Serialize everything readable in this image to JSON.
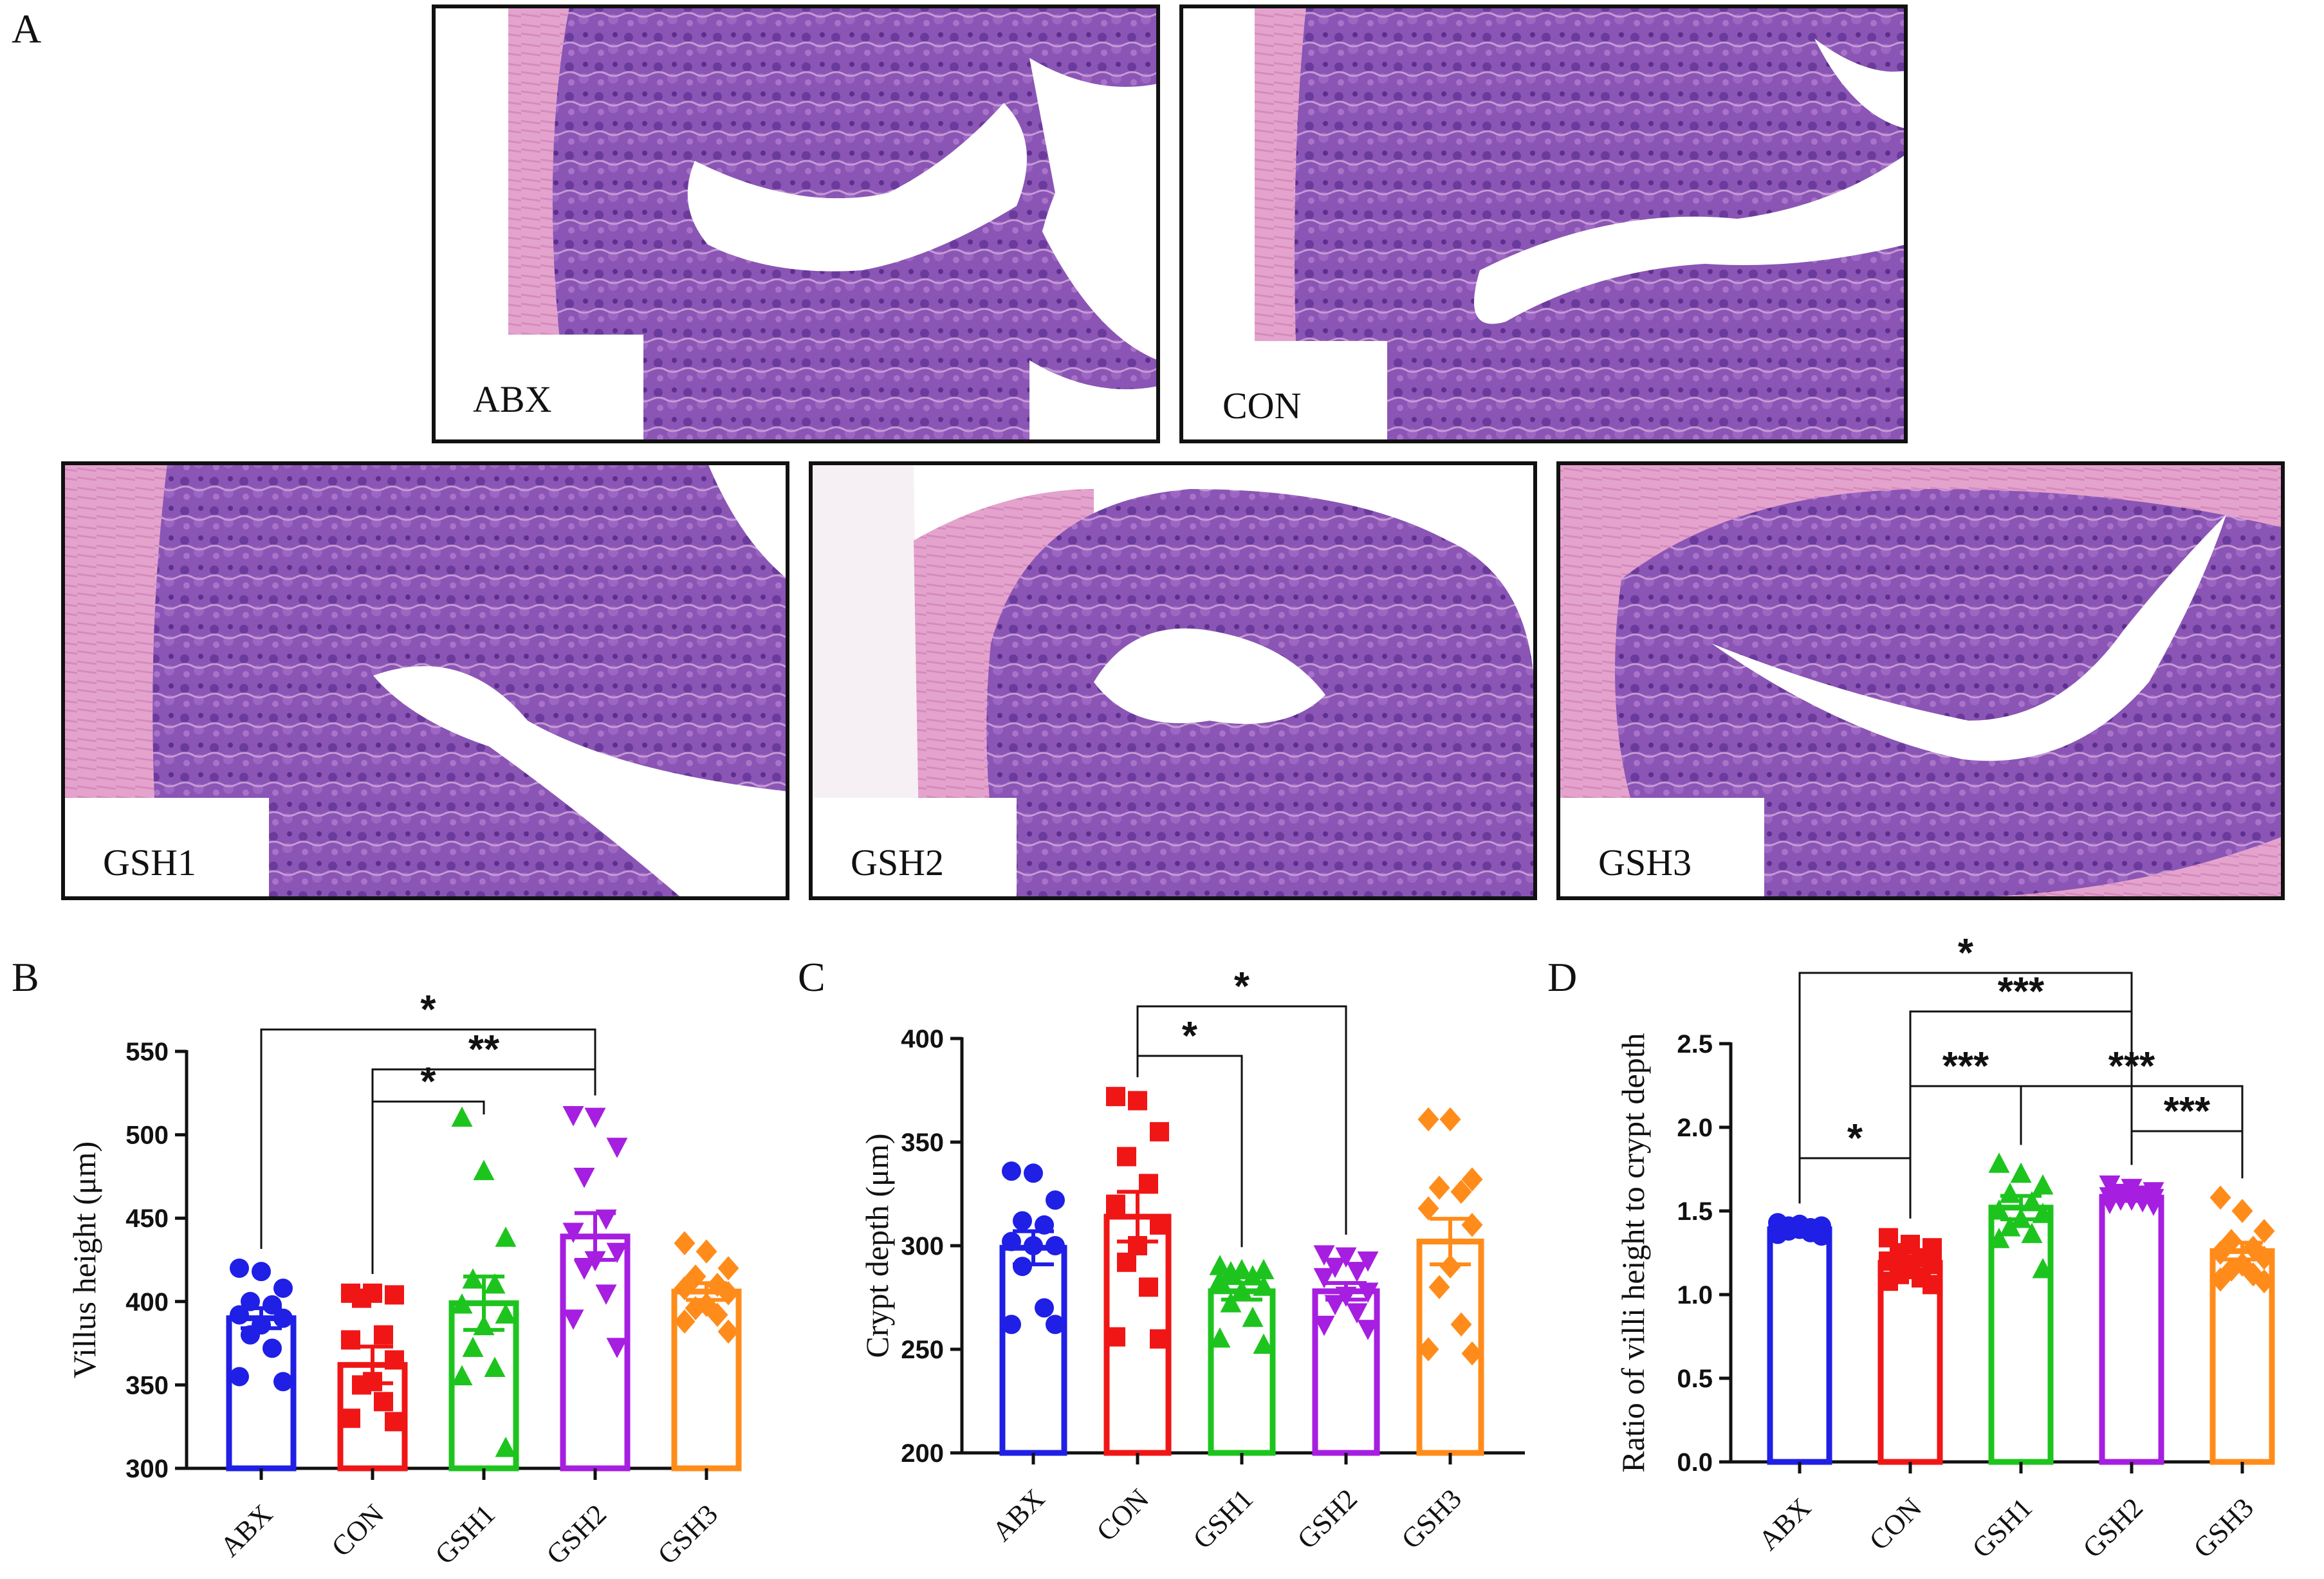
{
  "panel_labels": {
    "a": "A",
    "b": "B",
    "c": "C",
    "d": "D"
  },
  "histology": {
    "images": [
      {
        "label": "ABX"
      },
      {
        "label": "CON"
      },
      {
        "label": "GSH1"
      },
      {
        "label": "GSH2"
      },
      {
        "label": "GSH3"
      }
    ]
  },
  "colors": {
    "ABX": "#1f1fe6",
    "CON": "#f01616",
    "GSH1": "#1ec41e",
    "GSH2": "#a61ee0",
    "GSH3": "#ff8c1a"
  },
  "chart_data": [
    {
      "type": "bar",
      "panel": "B",
      "ylabel": "Villus height (μm)",
      "categories": [
        "ABX",
        "CON",
        "GSH1",
        "GSH2",
        "GSH3"
      ],
      "ylim": [
        300,
        550
      ],
      "yticks": [
        "300",
        "350",
        "400",
        "450",
        "500",
        "550"
      ],
      "yticks_values": [
        300,
        350,
        400,
        450,
        500,
        550
      ],
      "means": [
        390,
        362,
        399,
        439,
        406
      ],
      "sem": [
        6,
        11,
        16,
        14,
        5
      ],
      "points": [
        [
          420,
          418,
          408,
          400,
          398,
          392,
          390,
          386,
          380,
          372,
          355,
          352
        ],
        [
          405,
          405,
          404,
          402,
          380,
          377,
          365,
          352,
          350,
          340,
          330,
          328
        ],
        [
          510,
          478,
          438,
          413,
          410,
          398,
          392,
          385,
          372,
          360,
          355,
          312
        ],
        [
          512,
          511,
          493,
          475,
          450,
          442,
          430,
          425,
          420,
          405,
          390,
          373
        ],
        [
          435,
          430,
          420,
          415,
          410,
          408,
          405,
          398,
          396,
          392,
          388,
          382
        ]
      ],
      "markers": [
        "circle",
        "square",
        "triangle",
        "triangle-down",
        "diamond"
      ],
      "comparisons": [
        {
          "from": 0,
          "to": 3,
          "label": "*"
        },
        {
          "from": 1,
          "to": 3,
          "label": "**"
        },
        {
          "from": 1,
          "to": 2,
          "label": "*"
        }
      ]
    },
    {
      "type": "bar",
      "panel": "C",
      "ylabel": "Crypt depth (μm)",
      "categories": [
        "ABX",
        "CON",
        "GSH1",
        "GSH2",
        "GSH3"
      ],
      "ylim": [
        200,
        400
      ],
      "yticks": [
        "200",
        "250",
        "300",
        "350",
        "400"
      ],
      "yticks_values": [
        200,
        250,
        300,
        350,
        400
      ],
      "means": [
        299,
        314,
        278,
        278,
        302
      ],
      "sem": [
        8,
        12,
        4,
        4,
        11
      ],
      "points": [
        [
          336,
          335,
          322,
          312,
          310,
          302,
          300,
          300,
          290,
          270,
          262,
          262
        ],
        [
          372,
          370,
          355,
          343,
          330,
          320,
          310,
          300,
          292,
          280,
          256,
          255
        ],
        [
          290,
          288,
          288,
          287,
          285,
          283,
          280,
          278,
          272,
          265,
          255,
          252
        ],
        [
          296,
          295,
          293,
          290,
          288,
          285,
          278,
          276,
          272,
          268,
          262,
          260
        ],
        [
          361,
          361,
          332,
          328,
          326,
          318,
          310,
          290,
          280,
          262,
          250,
          248
        ]
      ],
      "markers": [
        "circle",
        "square",
        "triangle",
        "triangle-down",
        "diamond"
      ],
      "comparisons": [
        {
          "from": 1,
          "to": 3,
          "label": "*"
        },
        {
          "from": 1,
          "to": 2,
          "label": "*"
        }
      ]
    },
    {
      "type": "bar",
      "panel": "D",
      "ylabel": "Ratio of villi height to crypt depth",
      "categories": [
        "ABX",
        "CON",
        "GSH1",
        "GSH2",
        "GSH3"
      ],
      "ylim": [
        0.0,
        2.5
      ],
      "yticks": [
        "0.0",
        "0.5",
        "1.0",
        "1.5",
        "2.0",
        "2.5"
      ],
      "yticks_values": [
        0.0,
        0.5,
        1.0,
        1.5,
        2.0,
        2.5
      ],
      "means": [
        1.39,
        1.19,
        1.52,
        1.58,
        1.26
      ],
      "sem": [
        0.02,
        0.04,
        0.07,
        0.02,
        0.05
      ],
      "points": [
        [
          1.43,
          1.42,
          1.41,
          1.41,
          1.4,
          1.4,
          1.39,
          1.39,
          1.38,
          1.37,
          1.36,
          1.35
        ],
        [
          1.34,
          1.3,
          1.28,
          1.25,
          1.22,
          1.2,
          1.18,
          1.15,
          1.12,
          1.1,
          1.08,
          1.06
        ],
        [
          1.78,
          1.72,
          1.65,
          1.6,
          1.55,
          1.5,
          1.48,
          1.45,
          1.4,
          1.36,
          1.33,
          1.15
        ],
        [
          1.66,
          1.64,
          1.62,
          1.61,
          1.6,
          1.59,
          1.58,
          1.57,
          1.57,
          1.56,
          1.55,
          1.54
        ],
        [
          1.58,
          1.5,
          1.38,
          1.32,
          1.28,
          1.25,
          1.22,
          1.18,
          1.15,
          1.12,
          1.09,
          1.08
        ]
      ],
      "markers": [
        "circle",
        "square",
        "triangle",
        "triangle-down",
        "diamond"
      ],
      "comparisons": [
        {
          "from": 0,
          "to": 3,
          "label": "*"
        },
        {
          "from": 1,
          "to": 3,
          "label": "***"
        },
        {
          "from": 1,
          "to": 2,
          "label": "***"
        },
        {
          "from": 2,
          "to": 4,
          "label": "***"
        },
        {
          "from": 3,
          "to": 4,
          "label": "***"
        },
        {
          "from": 0,
          "to": 1,
          "label": "*"
        }
      ]
    }
  ]
}
